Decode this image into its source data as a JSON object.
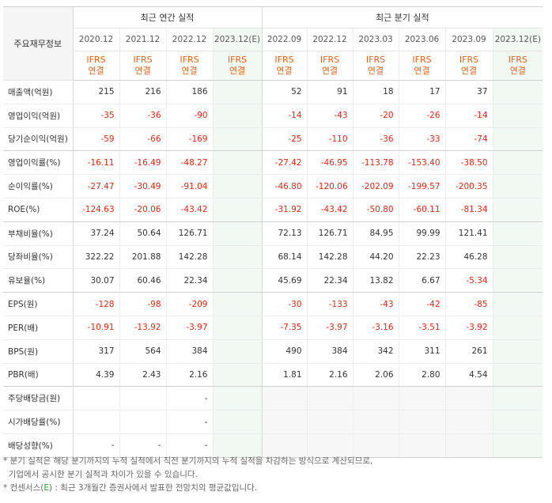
{
  "unit_label": "",
  "corner_label": "주요재무정보",
  "groups": {
    "annual": "최근 연간 실적",
    "quarterly": "최근 분기 실적"
  },
  "periods": [
    "2020.12",
    "2021.12",
    "2022.12",
    "2023.12(E)",
    "2022.09",
    "2022.12",
    "2023.03",
    "2023.06",
    "2023.09",
    "2023.12(E)"
  ],
  "estimate_flags": [
    false,
    false,
    false,
    true,
    false,
    false,
    false,
    false,
    false,
    true
  ],
  "basis_line1": "IFRS",
  "basis_line2": "연결",
  "rows": [
    {
      "label": "매출액(억원)",
      "values": [
        "215",
        "216",
        "186",
        "",
        "52",
        "91",
        "18",
        "17",
        "37",
        ""
      ]
    },
    {
      "label": "영업이익(억원)",
      "values": [
        "-35",
        "-36",
        "-90",
        "",
        "-14",
        "-43",
        "-20",
        "-26",
        "-14",
        ""
      ]
    },
    {
      "label": "당기순이익(억원)",
      "values": [
        "-59",
        "-66",
        "-169",
        "",
        "-25",
        "-110",
        "-36",
        "-33",
        "-74",
        ""
      ]
    },
    {
      "label": "영업이익률(%)",
      "values": [
        "-16.11",
        "-16.49",
        "-48.27",
        "",
        "-27.42",
        "-46.95",
        "-113.78",
        "-153.40",
        "-38.50",
        ""
      ]
    },
    {
      "label": "순이익률(%)",
      "values": [
        "-27.47",
        "-30.49",
        "-91.04",
        "",
        "-46.80",
        "-120.06",
        "-202.09",
        "-199.57",
        "-200.35",
        ""
      ]
    },
    {
      "label": "ROE(%)",
      "values": [
        "-124.63",
        "-20.06",
        "-43.42",
        "",
        "-31.92",
        "-43.42",
        "-50.80",
        "-60.11",
        "-81.34",
        ""
      ]
    },
    {
      "label": "부채비율(%)",
      "values": [
        "37.24",
        "50.64",
        "126.71",
        "",
        "72.13",
        "126.71",
        "84.95",
        "99.99",
        "121.41",
        ""
      ]
    },
    {
      "label": "당좌비율(%)",
      "values": [
        "322.22",
        "201.88",
        "142.28",
        "",
        "68.14",
        "142.28",
        "44.20",
        "22.23",
        "46.28",
        ""
      ]
    },
    {
      "label": "유보율(%)",
      "values": [
        "30.07",
        "60.46",
        "22.34",
        "",
        "45.69",
        "22.34",
        "13.82",
        "6.67",
        "-5.34",
        ""
      ]
    },
    {
      "label": "EPS(원)",
      "values": [
        "-128",
        "-98",
        "-209",
        "",
        "-30",
        "-133",
        "-43",
        "-42",
        "-85",
        ""
      ]
    },
    {
      "label": "PER(배)",
      "values": [
        "-10.91",
        "-13.92",
        "-3.97",
        "",
        "-7.35",
        "-3.97",
        "-3.16",
        "-3.51",
        "-3.92",
        ""
      ]
    },
    {
      "label": "BPS(원)",
      "values": [
        "317",
        "564",
        "384",
        "",
        "490",
        "384",
        "342",
        "311",
        "261",
        ""
      ]
    },
    {
      "label": "PBR(배)",
      "values": [
        "4.39",
        "2.43",
        "2.16",
        "",
        "1.81",
        "2.16",
        "2.06",
        "2.80",
        "4.54",
        ""
      ]
    },
    {
      "label": "주당배당금(원)",
      "values": [
        "",
        "",
        "-",
        "",
        "",
        "",
        "",
        "",
        "",
        ""
      ]
    },
    {
      "label": "시가배당률(%)",
      "values": [
        "",
        "",
        "-",
        "",
        "",
        "",
        "",
        "",
        "",
        ""
      ]
    },
    {
      "label": "배당성향(%)",
      "values": [
        "-",
        "-",
        "-",
        "",
        "",
        "",
        "",
        "",
        "",
        ""
      ]
    }
  ],
  "notes": [
    "* 분기 실적은 해당 분기까지의 누적 실적에서 직전 분기까지의 누적 실적을 차감하는 방식으로 계산되므로,",
    "  기업에서 공시한 분기 실적과 차이가 있을 수 있습니다.",
    "* 컨센서스(E) : 최근 3개월간 증권사에서 발표한 전망치의 평균값입니다."
  ],
  "colors": {
    "negative": "#e0271b",
    "basis": "#e2621b",
    "estimate_bg": "#f2f9f2",
    "estimate_text": "#2a9d3a"
  }
}
